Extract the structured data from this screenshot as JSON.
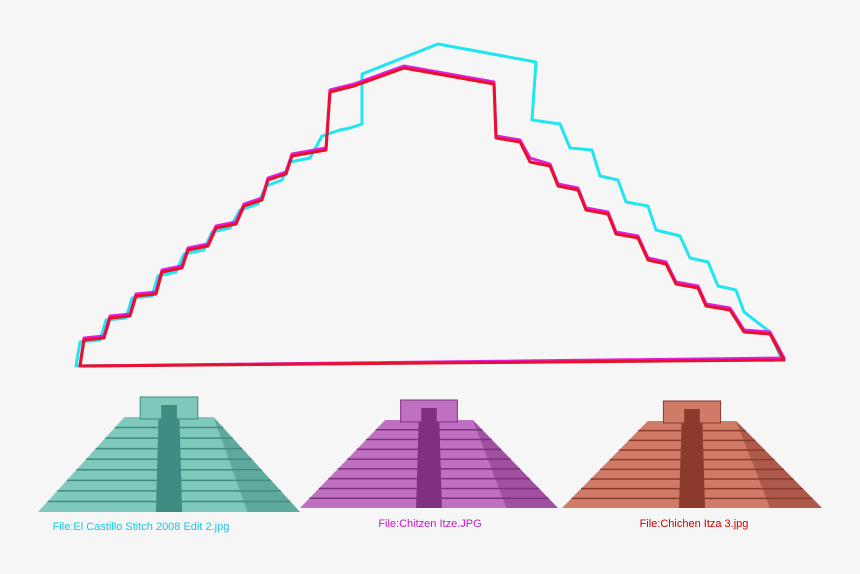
{
  "captions": [
    "File:El Castillo Stitch 2008 Edit 2.jpg",
    "File:Chitzen Itze.JPG",
    "File:Chichen Itza 3.jpg"
  ]
}
